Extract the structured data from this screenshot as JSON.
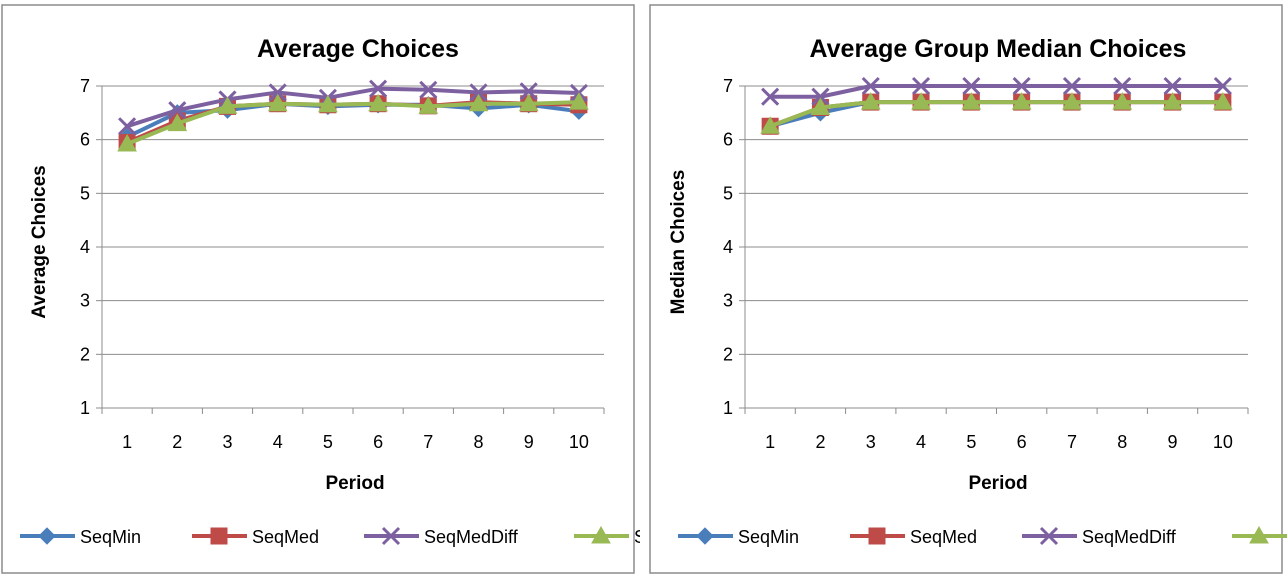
{
  "series_colors": {
    "SeqMin": "#4a7ebb",
    "SeqMed": "#be4b48",
    "SeqMedDiff": "#7d60a0",
    "Sim": "#98b954"
  },
  "series_markers": {
    "SeqMin": "diamond",
    "SeqMed": "square",
    "SeqMedDiff": "x",
    "Sim": "triangle"
  },
  "legend_position": "bottom",
  "chart_data": [
    {
      "type": "line",
      "title": "Average Choices",
      "xlabel": "Period",
      "ylabel": "Average Choices",
      "ylim": [
        1,
        7
      ],
      "yticks": [
        "1",
        "2",
        "3",
        "4",
        "5",
        "6",
        "7"
      ],
      "categories": [
        "1",
        "2",
        "3",
        "4",
        "5",
        "6",
        "7",
        "8",
        "9",
        "10"
      ],
      "grid": true,
      "series": [
        {
          "name": "SeqMin",
          "values": [
            6.05,
            6.5,
            6.55,
            6.67,
            6.62,
            6.65,
            6.65,
            6.58,
            6.65,
            6.53
          ]
        },
        {
          "name": "SeqMed",
          "values": [
            5.95,
            6.35,
            6.62,
            6.67,
            6.65,
            6.67,
            6.63,
            6.7,
            6.67,
            6.65
          ]
        },
        {
          "name": "SeqMedDiff",
          "values": [
            6.25,
            6.55,
            6.75,
            6.88,
            6.78,
            6.95,
            6.93,
            6.88,
            6.9,
            6.87
          ]
        },
        {
          "name": "Sim",
          "values": [
            5.92,
            6.3,
            6.62,
            6.67,
            6.65,
            6.67,
            6.62,
            6.67,
            6.67,
            6.7
          ]
        }
      ]
    },
    {
      "type": "line",
      "title": "Average Group Median Choices",
      "xlabel": "Period",
      "ylabel": "Median Choices",
      "ylim": [
        1,
        7
      ],
      "yticks": [
        "1",
        "2",
        "3",
        "4",
        "5",
        "6",
        "7"
      ],
      "categories": [
        "1",
        "2",
        "3",
        "4",
        "5",
        "6",
        "7",
        "8",
        "9",
        "10"
      ],
      "grid": true,
      "series": [
        {
          "name": "SeqMin",
          "values": [
            6.25,
            6.5,
            6.7,
            6.7,
            6.7,
            6.7,
            6.7,
            6.7,
            6.7,
            6.7
          ]
        },
        {
          "name": "SeqMed",
          "values": [
            6.25,
            6.6,
            6.7,
            6.7,
            6.7,
            6.7,
            6.7,
            6.7,
            6.7,
            6.7
          ]
        },
        {
          "name": "SeqMedDiff",
          "values": [
            6.8,
            6.8,
            7.0,
            7.0,
            7.0,
            7.0,
            7.0,
            7.0,
            7.0,
            7.0
          ]
        },
        {
          "name": "Sim",
          "values": [
            6.25,
            6.6,
            6.7,
            6.7,
            6.7,
            6.7,
            6.7,
            6.7,
            6.7,
            6.7
          ]
        }
      ]
    }
  ]
}
